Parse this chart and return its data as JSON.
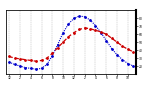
{
  "hours": [
    0,
    1,
    2,
    3,
    4,
    5,
    6,
    7,
    8,
    9,
    10,
    11,
    12,
    13,
    14,
    15,
    16,
    17,
    18,
    19,
    20,
    21,
    22,
    23
  ],
  "temp_red": [
    32,
    30,
    29,
    28,
    27,
    26,
    27,
    30,
    36,
    43,
    50,
    57,
    62,
    66,
    68,
    67,
    65,
    63,
    60,
    55,
    50,
    45,
    41,
    38
  ],
  "thsw_blue": [
    25,
    22,
    20,
    18,
    17,
    16,
    17,
    22,
    33,
    47,
    62,
    73,
    80,
    83,
    82,
    78,
    71,
    62,
    52,
    42,
    34,
    28,
    23,
    20
  ],
  "ylim": [
    10,
    90
  ],
  "ytick_positions": [
    20,
    30,
    40,
    50,
    60,
    70,
    80
  ],
  "ytick_labels": [
    "20",
    "30",
    "40",
    "50",
    "60",
    "70",
    "80"
  ],
  "xlim": [
    -0.5,
    23.5
  ],
  "xtick_positions": [
    0,
    2,
    4,
    6,
    8,
    10,
    12,
    14,
    16,
    18,
    20,
    22
  ],
  "xtick_labels": [
    "12",
    "2",
    "4",
    "6",
    "8",
    "10",
    "12",
    "2",
    "4",
    "6",
    "8",
    "10"
  ],
  "background_color": "#ffffff",
  "grid_color": "#999999",
  "red_color": "#cc0000",
  "blue_color": "#0000cc",
  "spine_color": "#000000"
}
